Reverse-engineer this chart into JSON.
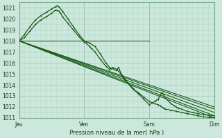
{
  "bg_color": "#cce8dc",
  "grid_color": "#aaccbb",
  "line_color": "#1a5c1a",
  "ylim": [
    1011,
    1021.5
  ],
  "yticks": [
    1011,
    1012,
    1013,
    1014,
    1015,
    1016,
    1017,
    1018,
    1019,
    1020,
    1021
  ],
  "xlabel": "Pression niveau de la mer( hPa )",
  "day_labels": [
    "Jeu",
    "Ven",
    "Sam",
    "Dim"
  ],
  "day_positions": [
    0,
    72,
    144,
    216
  ],
  "total_hours": 216,
  "straight_lines": [
    {
      "x": [
        0,
        216
      ],
      "y": [
        1018.0,
        1011.0
      ]
    },
    {
      "x": [
        0,
        216
      ],
      "y": [
        1018.0,
        1011.2
      ]
    },
    {
      "x": [
        0,
        216
      ],
      "y": [
        1018.0,
        1011.5
      ]
    },
    {
      "x": [
        0,
        216
      ],
      "y": [
        1018.0,
        1011.8
      ]
    },
    {
      "x": [
        0,
        144
      ],
      "y": [
        1018.0,
        1018.0
      ]
    },
    {
      "x": [
        0,
        216
      ],
      "y": [
        1018.0,
        1012.0
      ]
    }
  ],
  "wavy_series": [
    {
      "x": [
        0,
        6,
        12,
        18,
        24,
        30,
        36,
        40,
        42,
        44,
        48,
        54,
        60,
        66,
        72,
        78,
        84,
        90,
        96,
        100,
        102,
        108,
        110,
        114,
        116,
        120,
        126,
        130,
        132,
        138,
        144,
        150,
        154,
        156,
        158,
        160,
        162,
        168,
        174,
        180,
        186,
        192,
        198,
        204,
        210,
        216
      ],
      "y": [
        1018.0,
        1018.6,
        1019.3,
        1019.9,
        1020.3,
        1020.6,
        1020.9,
        1021.1,
        1021.2,
        1021.1,
        1020.7,
        1020.0,
        1019.3,
        1018.6,
        1018.0,
        1017.8,
        1017.5,
        1016.8,
        1016.0,
        1015.6,
        1015.5,
        1015.3,
        1015.6,
        1014.8,
        1014.5,
        1014.2,
        1013.6,
        1013.4,
        1013.3,
        1012.9,
        1012.5,
        1012.3,
        1012.2,
        1012.1,
        1012.0,
        1011.9,
        1011.8,
        1011.7,
        1011.6,
        1011.5,
        1011.4,
        1011.3,
        1011.2,
        1011.1,
        1011.05,
        1011.0
      ]
    },
    {
      "x": [
        0,
        6,
        12,
        18,
        24,
        30,
        36,
        40,
        42,
        44,
        46,
        48,
        54,
        60,
        66,
        72,
        74,
        78,
        80,
        84,
        90,
        96,
        100,
        102,
        104,
        108,
        112,
        114,
        120,
        124,
        126,
        128,
        132,
        138,
        144,
        148,
        150,
        152,
        154,
        156,
        158,
        160,
        162,
        168,
        172,
        174,
        176,
        180,
        186,
        192,
        198,
        204,
        210,
        216
      ],
      "y": [
        1018.0,
        1018.3,
        1018.9,
        1019.5,
        1019.9,
        1020.2,
        1020.5,
        1020.8,
        1020.8,
        1020.7,
        1020.5,
        1020.2,
        1019.6,
        1019.0,
        1018.4,
        1017.9,
        1017.8,
        1017.5,
        1017.3,
        1017.0,
        1016.3,
        1015.7,
        1015.4,
        1015.5,
        1015.6,
        1015.4,
        1015.1,
        1014.9,
        1014.2,
        1013.9,
        1013.7,
        1013.5,
        1013.2,
        1012.7,
        1012.2,
        1012.4,
        1012.5,
        1012.6,
        1012.7,
        1013.1,
        1013.3,
        1013.1,
        1012.8,
        1012.3,
        1012.1,
        1012.0,
        1011.9,
        1011.8,
        1011.6,
        1011.5,
        1011.4,
        1011.3,
        1011.25,
        1011.2
      ]
    }
  ]
}
